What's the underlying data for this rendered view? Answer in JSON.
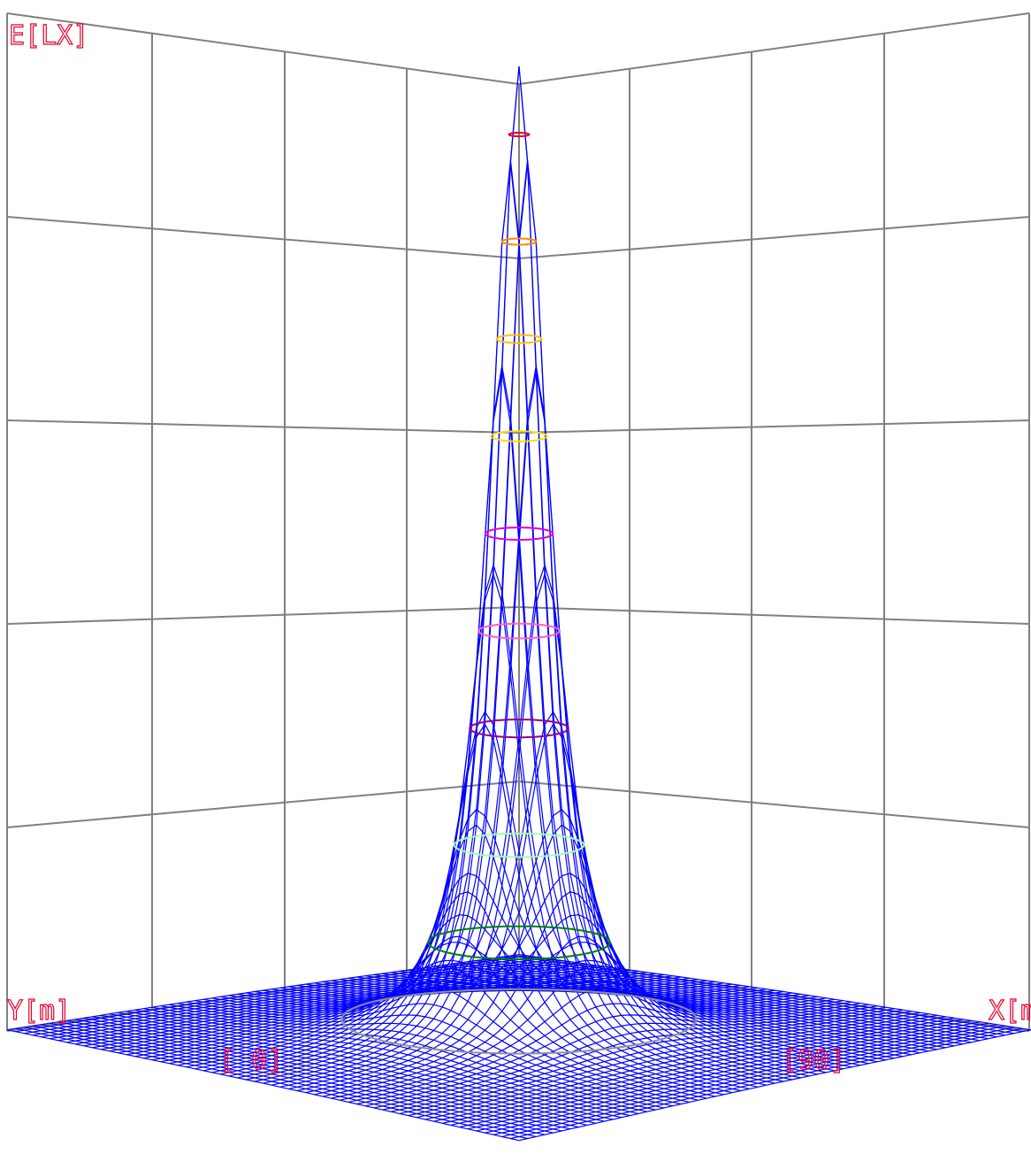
{
  "axis_labels": {
    "vertical": "E[LX]",
    "left": "Y[m]",
    "right": "X[m]"
  },
  "angle_labels": {
    "left": "[ 0]",
    "right": "[90]"
  }
}
